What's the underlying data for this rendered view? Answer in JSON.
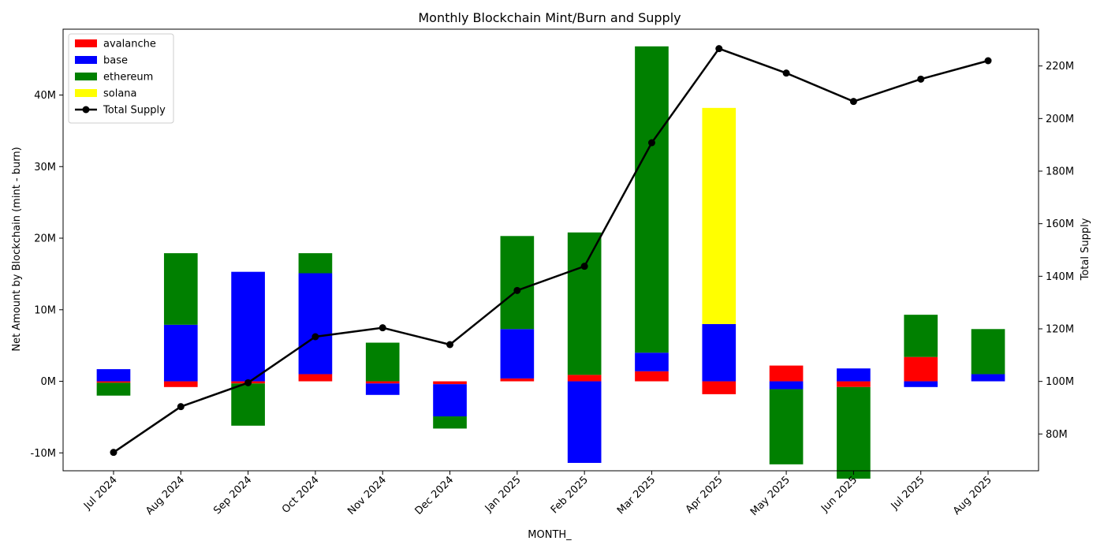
{
  "chart_data": {
    "type": "bar",
    "title": "Monthly Blockchain Mint/Burn and Supply",
    "xlabel": "MONTH_",
    "ylabel": "Net Amount by Blockchain (mint - burn)",
    "y2label": "Total Supply",
    "categories": [
      "Jul 2024",
      "Aug 2024",
      "Sep 2024",
      "Oct 2024",
      "Nov 2024",
      "Dec 2024",
      "Jan 2025",
      "Feb 2025",
      "Mar 2025",
      "Apr 2025",
      "May 2025",
      "Jun 2025",
      "Jul 2025",
      "Aug 2025"
    ],
    "ylim": [
      -12.5,
      49.2
    ],
    "y_ticks": [
      -10,
      0,
      10,
      20,
      30,
      40
    ],
    "y_tick_labels": [
      "-10M",
      "0M",
      "10M",
      "20M",
      "30M",
      "40M"
    ],
    "y2lim": [
      66,
      234
    ],
    "y2_ticks": [
      80,
      100,
      120,
      140,
      160,
      180,
      200,
      220
    ],
    "y2_tick_labels": [
      "80M",
      "100M",
      "120M",
      "140M",
      "160M",
      "180M",
      "200M",
      "220M"
    ],
    "units": "millions",
    "stacked": true,
    "legend_position": "top-left",
    "series": [
      {
        "name": "avalanche",
        "color": "#ff0000",
        "values": [
          -0.2,
          -0.8,
          -0.3,
          1.0,
          -0.3,
          -0.4,
          0.4,
          0.9,
          1.4,
          -1.8,
          2.2,
          -0.8,
          3.4,
          0.0
        ]
      },
      {
        "name": "base",
        "color": "#0000ff",
        "values": [
          1.7,
          7.9,
          15.3,
          14.1,
          -1.6,
          -4.5,
          6.9,
          -11.4,
          2.6,
          8.0,
          -1.1,
          1.8,
          -0.8,
          1.0
        ]
      },
      {
        "name": "ethereum",
        "color": "#008000",
        "values": [
          -1.8,
          10.0,
          -5.9,
          2.8,
          5.4,
          -1.7,
          13.0,
          19.9,
          42.8,
          0.0,
          -10.5,
          -12.8,
          5.9,
          6.3
        ]
      },
      {
        "name": "solana",
        "color": "#ffff00",
        "values": [
          0,
          0,
          0,
          0,
          0,
          0,
          0,
          0,
          0,
          30.2,
          0,
          0,
          0,
          0
        ]
      }
    ],
    "line_series": {
      "name": "Total Supply",
      "color": "#000000",
      "axis": "right",
      "values": [
        73.0,
        90.4,
        99.5,
        117.0,
        120.4,
        114.0,
        134.6,
        143.8,
        190.8,
        226.6,
        217.3,
        206.5,
        215.0,
        222.0
      ]
    }
  }
}
